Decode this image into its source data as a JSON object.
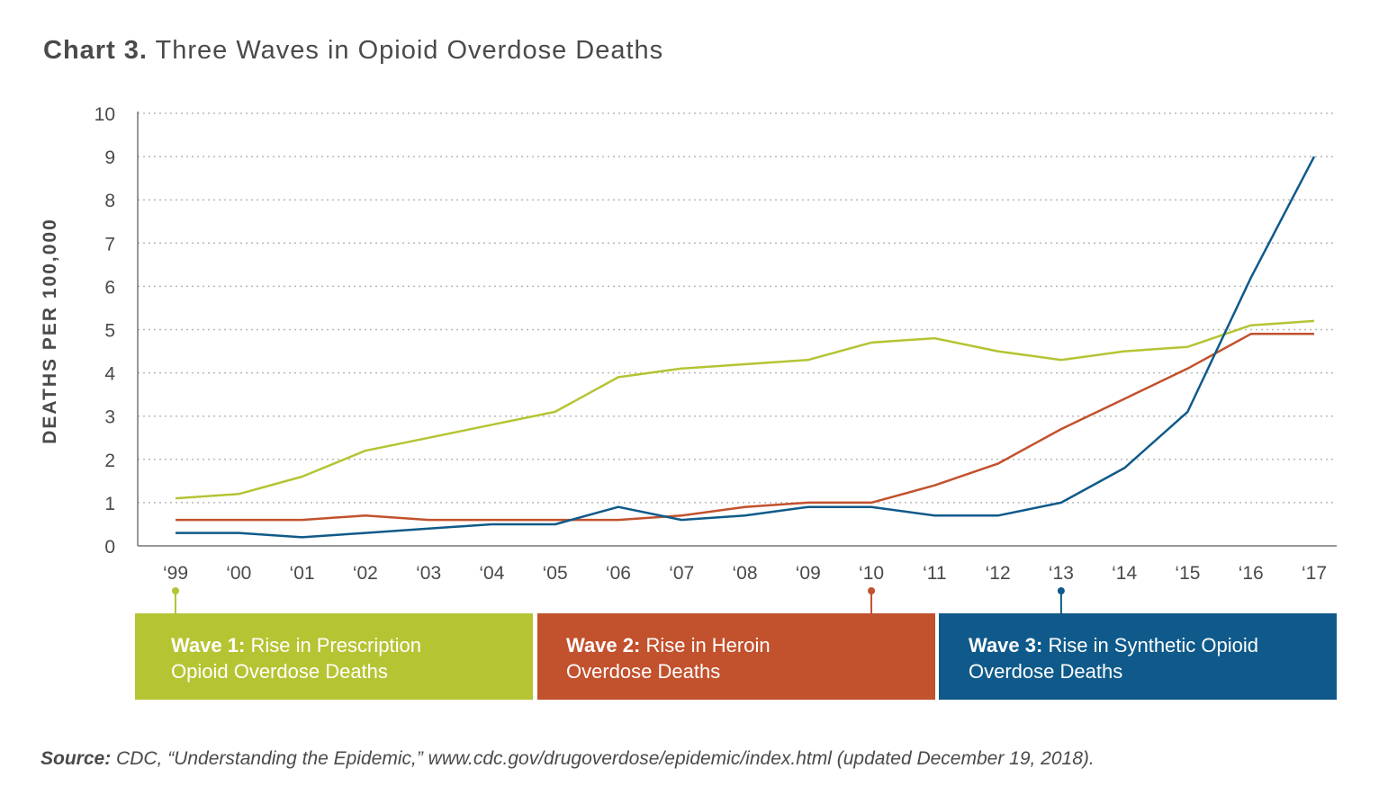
{
  "title": {
    "prefix": "Chart 3.",
    "text": "Three Waves in Opioid Overdose Deaths"
  },
  "chart_data": {
    "type": "line",
    "ylabel": "DEATHS PER 100,000",
    "xlabel": "",
    "ylim": [
      0,
      10
    ],
    "yticks": [
      "0",
      "1",
      "2",
      "3",
      "4",
      "5",
      "6",
      "7",
      "8",
      "9",
      "10"
    ],
    "categories": [
      "‘99",
      "‘00",
      "‘01",
      "‘02",
      "‘03",
      "‘04",
      "‘05",
      "‘06",
      "‘07",
      "‘08",
      "‘09",
      "‘10",
      "‘11",
      "‘12",
      "‘13",
      "‘14",
      "‘15",
      "‘16",
      "‘17"
    ],
    "grid": "horizontal-dotted",
    "series": [
      {
        "key": "prescription",
        "color": "#b5c433",
        "values": [
          1.1,
          1.2,
          1.6,
          2.2,
          2.5,
          2.8,
          3.1,
          3.9,
          4.1,
          4.2,
          4.3,
          4.7,
          4.8,
          4.5,
          4.3,
          4.5,
          4.6,
          5.1,
          5.2
        ]
      },
      {
        "key": "heroin",
        "color": "#c2512d",
        "values": [
          0.6,
          0.6,
          0.6,
          0.7,
          0.6,
          0.6,
          0.6,
          0.6,
          0.7,
          0.9,
          1.0,
          1.0,
          1.4,
          1.9,
          2.7,
          3.4,
          4.1,
          4.9,
          4.9
        ]
      },
      {
        "key": "synthetic",
        "color": "#0f5a8a",
        "values": [
          0.3,
          0.3,
          0.2,
          0.3,
          0.4,
          0.5,
          0.5,
          0.9,
          0.6,
          0.7,
          0.9,
          0.9,
          0.7,
          0.7,
          1.0,
          1.8,
          3.1,
          6.2,
          9.0
        ]
      }
    ],
    "markers": [
      {
        "category_index": 0,
        "color": "#b5c433"
      },
      {
        "category_index": 11,
        "color": "#c2512d"
      },
      {
        "category_index": 14,
        "color": "#0f5a8a"
      }
    ]
  },
  "waves": [
    {
      "label": "Wave 1:",
      "line1": " Rise in Prescription",
      "line2": "Opioid Overdose Deaths",
      "color": "#b5c433"
    },
    {
      "label": "Wave 2:",
      "line1": " Rise in Heroin",
      "line2": "Overdose Deaths",
      "color": "#c2512d"
    },
    {
      "label": "Wave 3:",
      "line1": " Rise in Synthetic Opioid",
      "line2": "Overdose Deaths",
      "color": "#0f5a8a"
    }
  ],
  "source": {
    "label": "Source:",
    "text": " CDC, “Understanding the Epidemic,” www.cdc.gov/drugoverdose/epidemic/index.html (updated December 19, 2018)."
  }
}
